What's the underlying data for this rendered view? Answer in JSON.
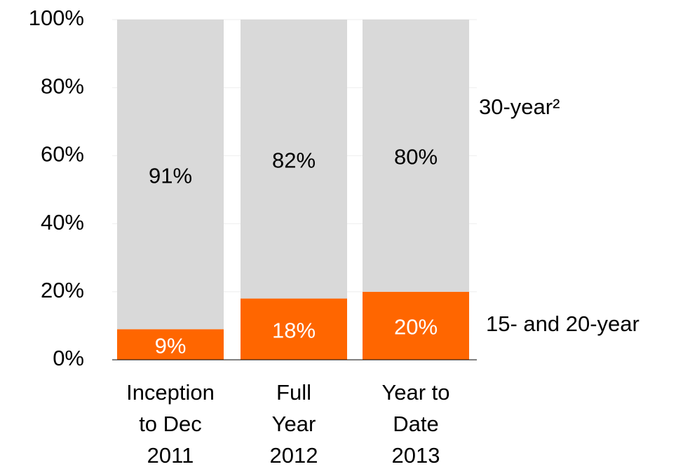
{
  "chart_data": {
    "type": "stacked_bar",
    "categories": [
      [
        "Inception",
        "to Dec",
        "2011"
      ],
      [
        "Full",
        "Year",
        "2012"
      ],
      [
        "Year to",
        "Date",
        "2013"
      ]
    ],
    "series": [
      {
        "name": "15- and 20-year",
        "color": "#ff6600",
        "values": [
          9,
          18,
          20
        ],
        "value_labels": [
          "9%",
          "18%",
          "20%"
        ]
      },
      {
        "name": "30-year²",
        "color": "#d9d9d9",
        "values": [
          91,
          82,
          80
        ],
        "value_labels": [
          "91%",
          "82%",
          "80%"
        ]
      }
    ],
    "ylim": [
      0,
      100
    ],
    "yticks": [
      {
        "value": 0,
        "label": "0%"
      },
      {
        "value": 20,
        "label": "20%"
      },
      {
        "value": 40,
        "label": "40%"
      },
      {
        "value": 60,
        "label": "60%"
      },
      {
        "value": 80,
        "label": "80%"
      },
      {
        "value": 100,
        "label": "100%"
      }
    ],
    "grid": true
  }
}
